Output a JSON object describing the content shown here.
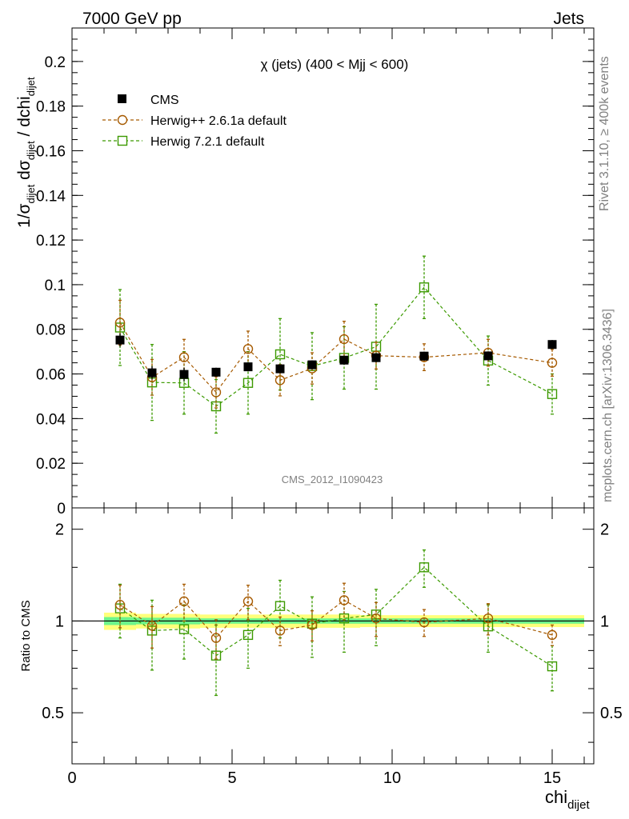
{
  "header": {
    "left": "7000 GeV pp",
    "right": "Jets"
  },
  "side": {
    "rivet": "Rivet 3.1.10, ≥ 400k events",
    "mcplots": "mcplots.cern.ch [arXiv:1306.3436]"
  },
  "watermark": "CMS_2012_I1090423",
  "colors": {
    "cms": "#000000",
    "herwigpp": "#a65a00",
    "herwig7": "#3c9a00",
    "band_inner": "#6cf58c",
    "band_outer": "#ffff7a"
  },
  "chart_data": [
    {
      "type": "scatter",
      "title": "χ (jets) (400 < Mjj <  600)",
      "ylabel": {
        "main": "1/σ",
        "sub1": "dijet",
        "mid": " dσ",
        "sub2": "dijet",
        "tail": " / dchi",
        "sub3": "dijet"
      },
      "xlim": [
        0,
        16.3
      ],
      "ylim": [
        0,
        0.215
      ],
      "yticks": [
        0,
        0.02,
        0.04,
        0.06,
        0.08,
        0.1,
        0.12,
        0.14,
        0.16,
        0.18,
        0.2
      ],
      "ytick_labels": [
        "0",
        "0.02",
        "0.04",
        "0.06",
        "0.08",
        "0.1",
        "0.12",
        "0.14",
        "0.16",
        "0.18",
        "0.2"
      ],
      "x": [
        1.5,
        2.5,
        3.5,
        4.5,
        5.5,
        6.5,
        7.5,
        8.5,
        9.5,
        11,
        13,
        15
      ],
      "series": [
        {
          "name": "CMS",
          "marker": "filled-square",
          "values": [
            0.0752,
            0.0605,
            0.0598,
            0.0608,
            0.0632,
            0.0623,
            0.0641,
            0.0662,
            0.0673,
            0.068,
            0.0681,
            0.0732
          ],
          "errors": [
            0.003,
            0.003,
            0.003,
            0.002,
            0.002,
            0.002,
            0.002,
            0.002,
            0.002,
            0.002,
            0.002,
            0.002
          ]
        },
        {
          "name": "Herwig++ 2.6.1a default",
          "marker": "open-circle",
          "values": [
            0.083,
            0.0585,
            0.0675,
            0.0518,
            0.0712,
            0.0572,
            0.0625,
            0.0756,
            0.0682,
            0.0675,
            0.0695,
            0.065
          ],
          "errors": [
            0.01,
            0.008,
            0.008,
            0.007,
            0.008,
            0.007,
            0.007,
            0.008,
            0.006,
            0.006,
            0.006,
            0.006
          ]
        },
        {
          "name": "Herwig 7.2.1 default",
          "marker": "open-square",
          "values": [
            0.0808,
            0.0562,
            0.056,
            0.0455,
            0.056,
            0.0688,
            0.0635,
            0.0672,
            0.0722,
            0.0988,
            0.066,
            0.051
          ],
          "errors": [
            0.017,
            0.017,
            0.014,
            0.012,
            0.014,
            0.016,
            0.015,
            0.014,
            0.019,
            0.014,
            0.011,
            0.009
          ]
        }
      ]
    },
    {
      "type": "scatter",
      "ylabel": "Ratio to CMS",
      "xlabel": {
        "main": "chi",
        "sub": "dijet"
      },
      "xlim": [
        0,
        16.3
      ],
      "ylim": [
        0.34,
        2.35
      ],
      "yscale": "log",
      "yticks": [
        0.5,
        1,
        2
      ],
      "ytick_labels": [
        "0.5",
        "1",
        "2"
      ],
      "xticks": [
        0,
        5,
        10,
        15
      ],
      "xtick_labels": [
        "0",
        "5",
        "10",
        "15"
      ],
      "x": [
        1.5,
        2.5,
        3.5,
        4.5,
        5.5,
        6.5,
        7.5,
        8.5,
        9.5,
        11,
        13,
        15
      ],
      "band_inner": [
        0.03,
        0.025,
        0.025,
        0.02,
        0.02,
        0.02,
        0.02,
        0.02,
        0.02,
        0.02,
        0.02,
        0.02
      ],
      "band_outer": [
        0.065,
        0.055,
        0.055,
        0.05,
        0.05,
        0.05,
        0.05,
        0.05,
        0.045,
        0.045,
        0.045,
        0.045
      ],
      "series": [
        {
          "name": "Herwig++ 2.6.1a default",
          "marker": "open-circle",
          "values": [
            1.13,
            0.965,
            1.16,
            0.88,
            1.16,
            0.93,
            0.97,
            1.17,
            1.02,
            0.99,
            1.02,
            0.9
          ],
          "errors": [
            0.18,
            0.15,
            0.16,
            0.13,
            0.15,
            0.1,
            0.11,
            0.16,
            0.13,
            0.1,
            0.12,
            0.07
          ]
        },
        {
          "name": "Herwig 7.2.1 default",
          "marker": "open-square",
          "values": [
            1.1,
            0.93,
            0.94,
            0.77,
            0.9,
            1.12,
            0.98,
            1.02,
            1.05,
            1.5,
            0.96,
            0.71
          ],
          "errors": [
            0.22,
            0.24,
            0.19,
            0.2,
            0.2,
            0.24,
            0.22,
            0.23,
            0.22,
            0.21,
            0.17,
            0.12
          ]
        }
      ]
    }
  ]
}
